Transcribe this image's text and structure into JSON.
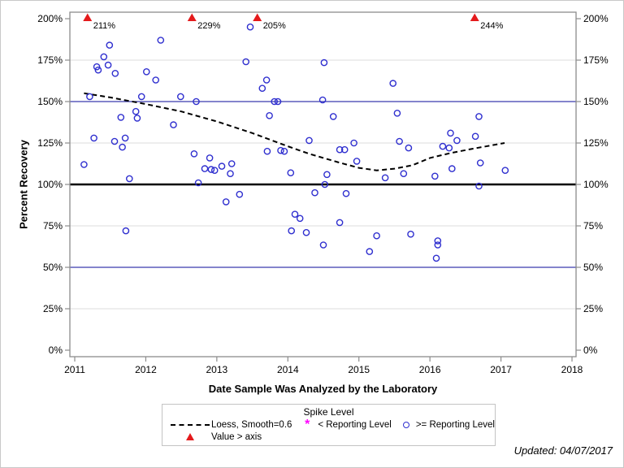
{
  "figure": {
    "updated_label": "Updated: 04/07/2017"
  },
  "chart_data": {
    "type": "scatter",
    "title": "",
    "xlabel": "Date Sample Was Analyzed by the Laboratory",
    "ylabel": "Percent Recovery",
    "x_range": [
      2011,
      2018
    ],
    "x_ticks": [
      "2011",
      "2012",
      "2013",
      "2014",
      "2015",
      "2016",
      "2017",
      "2018"
    ],
    "x_tick_values": [
      2011,
      2012,
      2013,
      2014,
      2015,
      2016,
      2017,
      2018
    ],
    "y_range": [
      0,
      200
    ],
    "y_ticks": [
      "0%",
      "25%",
      "50%",
      "75%",
      "100%",
      "125%",
      "150%",
      "175%",
      "200%"
    ],
    "y_tick_values": [
      0,
      25,
      50,
      75,
      100,
      125,
      150,
      175,
      200
    ],
    "grid_values": [
      25,
      75,
      125,
      175
    ],
    "grid_color": "#dcdcdc",
    "frame_color": "#8c8c8c",
    "legend_position": "bottom",
    "reference_lines": [
      {
        "y": 150,
        "color": "#3b3bad",
        "width": 1.2,
        "name": "upper-limit-150"
      },
      {
        "y": 50,
        "color": "#3b3bad",
        "width": 1.2,
        "name": "lower-limit-50"
      },
      {
        "y": 100,
        "color": "#000000",
        "width": 2.6,
        "name": "target-100"
      }
    ],
    "legend": {
      "title": "Spike Level",
      "loess": "Loess, Smooth=0.6",
      "below": "< Reporting Level",
      "above": ">= Reporting Level",
      "gt_axis": "Value > axis"
    },
    "series": [
      {
        "name": ">= Reporting Level",
        "marker": "circle",
        "color": "#2f2fcf",
        "points": [
          [
            2011.13,
            112
          ],
          [
            2011.21,
            153
          ],
          [
            2011.27,
            128
          ],
          [
            2011.31,
            171
          ],
          [
            2011.33,
            169
          ],
          [
            2011.41,
            177
          ],
          [
            2011.47,
            172
          ],
          [
            2011.49,
            184
          ],
          [
            2011.56,
            126
          ],
          [
            2011.57,
            167
          ],
          [
            2011.65,
            140.5
          ],
          [
            2011.67,
            122.5
          ],
          [
            2011.71,
            128
          ],
          [
            2011.72,
            72
          ],
          [
            2011.77,
            103.5
          ],
          [
            2011.86,
            144
          ],
          [
            2011.88,
            140
          ],
          [
            2011.94,
            153
          ],
          [
            2012.01,
            168
          ],
          [
            2012.14,
            163
          ],
          [
            2012.21,
            187
          ],
          [
            2012.39,
            136
          ],
          [
            2012.49,
            153
          ],
          [
            2012.68,
            118.5
          ],
          [
            2012.71,
            150
          ],
          [
            2012.74,
            101
          ],
          [
            2012.83,
            109.5
          ],
          [
            2012.9,
            116
          ],
          [
            2012.92,
            109
          ],
          [
            2012.97,
            108.5
          ],
          [
            2013.07,
            111
          ],
          [
            2013.13,
            89.5
          ],
          [
            2013.19,
            106.5
          ],
          [
            2013.21,
            112.5
          ],
          [
            2013.32,
            94
          ],
          [
            2013.41,
            174
          ],
          [
            2013.47,
            195
          ],
          [
            2013.64,
            158
          ],
          [
            2013.7,
            163
          ],
          [
            2013.71,
            120
          ],
          [
            2013.74,
            141.5
          ],
          [
            2013.81,
            150
          ],
          [
            2013.86,
            150
          ],
          [
            2013.9,
            120.5
          ],
          [
            2013.95,
            120
          ],
          [
            2014.04,
            107
          ],
          [
            2014.05,
            72
          ],
          [
            2014.1,
            82
          ],
          [
            2014.17,
            79.5
          ],
          [
            2014.26,
            71
          ],
          [
            2014.3,
            126.5
          ],
          [
            2014.38,
            95
          ],
          [
            2014.49,
            151
          ],
          [
            2014.5,
            63.5
          ],
          [
            2014.51,
            173.5
          ],
          [
            2014.52,
            100
          ],
          [
            2014.55,
            106
          ],
          [
            2014.64,
            141
          ],
          [
            2014.73,
            121
          ],
          [
            2014.73,
            77
          ],
          [
            2014.8,
            121
          ],
          [
            2014.82,
            94.5
          ],
          [
            2014.93,
            125
          ],
          [
            2014.97,
            114
          ],
          [
            2015.15,
            59.5
          ],
          [
            2015.25,
            69
          ],
          [
            2015.37,
            104
          ],
          [
            2015.48,
            161
          ],
          [
            2015.54,
            143
          ],
          [
            2015.57,
            126
          ],
          [
            2015.63,
            106.5
          ],
          [
            2015.7,
            122
          ],
          [
            2015.73,
            70
          ],
          [
            2016.07,
            105
          ],
          [
            2016.09,
            55.5
          ],
          [
            2016.11,
            66
          ],
          [
            2016.11,
            63.5
          ],
          [
            2016.18,
            123
          ],
          [
            2016.27,
            122
          ],
          [
            2016.29,
            131
          ],
          [
            2016.31,
            109.5
          ],
          [
            2016.38,
            126.5
          ],
          [
            2016.64,
            129
          ],
          [
            2016.69,
            141
          ],
          [
            2016.69,
            99
          ],
          [
            2016.71,
            113
          ],
          [
            2017.06,
            108.5
          ]
        ]
      },
      {
        "name": "< Reporting Level",
        "marker": "asterisk",
        "color": "#ff00ff",
        "points": []
      },
      {
        "name": "Value > axis",
        "marker": "triangle",
        "color": "#e41a1c",
        "clipped_points": [
          {
            "x": 2011.18,
            "label": "211%"
          },
          {
            "x": 2012.65,
            "label": "229%"
          },
          {
            "x": 2013.57,
            "label": "205%"
          },
          {
            "x": 2016.63,
            "label": "244%"
          }
        ]
      },
      {
        "name": "Loess, Smooth=0.6",
        "type": "line",
        "dashed": true,
        "color": "#000000",
        "points": [
          [
            2011.13,
            155
          ],
          [
            2011.5,
            152.5
          ],
          [
            2012,
            148.5
          ],
          [
            2012.5,
            144
          ],
          [
            2013,
            138
          ],
          [
            2013.5,
            131
          ],
          [
            2014,
            123
          ],
          [
            2014.3,
            118.5
          ],
          [
            2014.7,
            113.5
          ],
          [
            2015,
            110
          ],
          [
            2015.25,
            108.5
          ],
          [
            2015.5,
            109.5
          ],
          [
            2015.75,
            111.5
          ],
          [
            2016,
            116
          ],
          [
            2016.3,
            119
          ],
          [
            2016.6,
            121.5
          ],
          [
            2017.05,
            125
          ]
        ]
      }
    ]
  }
}
